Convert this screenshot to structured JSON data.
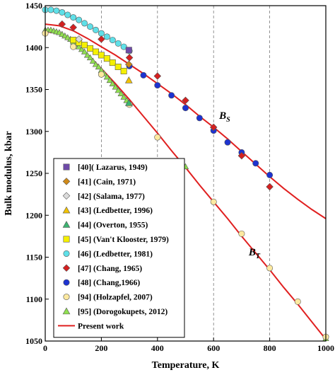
{
  "chart_data": {
    "type": "scatter",
    "xlabel": "Temperature,  K",
    "ylabel": "Bulk modulus, kbar",
    "xlim": [
      0,
      1000
    ],
    "ylim": [
      1050,
      1450
    ],
    "xticks": [
      0,
      200,
      400,
      600,
      800,
      1000
    ],
    "yticks": [
      1050,
      1100,
      1150,
      1200,
      1250,
      1300,
      1350,
      1400,
      1450
    ],
    "grid": "vertical dashed",
    "legend_position": "bottom-left",
    "annotations": [
      {
        "main": "B",
        "sub": "S",
        "x": 620,
        "y": 1315
      },
      {
        "main": "B",
        "sub": "T",
        "x": 725,
        "y": 1152
      }
    ],
    "series": [
      {
        "name": "[40]( Lazarus, 1949)",
        "marker": "square",
        "color": "#6e4aa8",
        "points": [
          [
            298,
            1397
          ]
        ]
      },
      {
        "name": "[41] (Cain, 1971)",
        "marker": "diamond",
        "color": "#d08a18",
        "points": [
          [
            298,
            1380
          ]
        ]
      },
      {
        "name": "[42] (Salama, 1977)",
        "marker": "diamond",
        "color": "#dcdcdc",
        "points": [
          [
            120,
            1410
          ]
        ]
      },
      {
        "name": "[43] (Ledbetter, 1996)",
        "marker": "triangle",
        "color": "#f2c200",
        "points": [
          [
            298,
            1361
          ]
        ]
      },
      {
        "name": "[44] (Overton, 1955)",
        "marker": "triangle",
        "color": "#3cb371",
        "points": [
          [
            298,
            1334
          ]
        ]
      },
      {
        "name": "[45] (Van't Klooster, 1979)",
        "marker": "square",
        "color": "#f5f000",
        "points": [
          [
            100,
            1409
          ],
          [
            120,
            1406
          ],
          [
            140,
            1403
          ],
          [
            160,
            1399
          ],
          [
            180,
            1395
          ],
          [
            200,
            1391
          ],
          [
            220,
            1387
          ],
          [
            240,
            1382
          ],
          [
            260,
            1377
          ],
          [
            280,
            1372
          ]
        ]
      },
      {
        "name": "[46] (Ledbetter, 1981)",
        "marker": "circle",
        "color": "#5fe0e8",
        "points": [
          [
            0,
            1445
          ],
          [
            20,
            1445
          ],
          [
            40,
            1444
          ],
          [
            60,
            1442
          ],
          [
            80,
            1439
          ],
          [
            100,
            1436
          ],
          [
            120,
            1433
          ],
          [
            140,
            1429
          ],
          [
            160,
            1425
          ],
          [
            180,
            1421
          ],
          [
            200,
            1417
          ],
          [
            220,
            1413
          ],
          [
            240,
            1409
          ],
          [
            260,
            1405
          ],
          [
            280,
            1401
          ],
          [
            300,
            1396
          ]
        ]
      },
      {
        "name": "[47] (Chang, 1965)",
        "marker": "diamond",
        "color": "#d42020",
        "points": [
          [
            60,
            1428
          ],
          [
            100,
            1424
          ],
          [
            200,
            1410
          ],
          [
            300,
            1388
          ],
          [
            400,
            1366
          ],
          [
            500,
            1337
          ],
          [
            600,
            1305
          ],
          [
            700,
            1271
          ],
          [
            800,
            1234
          ]
        ]
      },
      {
        "name": "[48] (Chang,1966)",
        "marker": "circle",
        "color": "#1e33d0",
        "points": [
          [
            300,
            1378
          ],
          [
            350,
            1367
          ],
          [
            400,
            1355
          ],
          [
            450,
            1343
          ],
          [
            500,
            1328
          ],
          [
            550,
            1316
          ],
          [
            600,
            1301
          ],
          [
            650,
            1287
          ],
          [
            700,
            1275
          ],
          [
            750,
            1262
          ],
          [
            800,
            1248
          ]
        ]
      },
      {
        "name": "[94] (Holzapfel, 2007)",
        "marker": "circle",
        "color": "#fde9a0",
        "points": [
          [
            0,
            1417
          ],
          [
            100,
            1401
          ],
          [
            200,
            1368
          ],
          [
            300,
            1332
          ],
          [
            400,
            1293
          ],
          [
            600,
            1216
          ],
          [
            700,
            1178
          ],
          [
            800,
            1137
          ],
          [
            900,
            1097
          ],
          [
            1000,
            1055
          ]
        ]
      },
      {
        "name": "[95] (Dorogokupets, 2012)",
        "marker": "triangle",
        "color": "#90e050",
        "points": [
          [
            0,
            1421
          ],
          [
            10,
            1421
          ],
          [
            20,
            1421
          ],
          [
            30,
            1420
          ],
          [
            40,
            1419
          ],
          [
            50,
            1418
          ],
          [
            60,
            1416
          ],
          [
            70,
            1414
          ],
          [
            80,
            1412
          ],
          [
            90,
            1410
          ],
          [
            100,
            1407
          ],
          [
            110,
            1404
          ],
          [
            120,
            1401
          ],
          [
            130,
            1398
          ],
          [
            140,
            1395
          ],
          [
            150,
            1391
          ],
          [
            160,
            1388
          ],
          [
            170,
            1384
          ],
          [
            180,
            1380
          ],
          [
            190,
            1377
          ],
          [
            200,
            1373
          ],
          [
            210,
            1369
          ],
          [
            220,
            1365
          ],
          [
            230,
            1361
          ],
          [
            240,
            1357
          ],
          [
            250,
            1353
          ],
          [
            260,
            1349
          ],
          [
            270,
            1345
          ],
          [
            280,
            1341
          ],
          [
            290,
            1337
          ],
          [
            300,
            1333
          ],
          [
            500,
            1258
          ],
          [
            1000,
            1053
          ]
        ]
      },
      {
        "name": "Present work",
        "marker": "line",
        "color": "#e02020",
        "curves": [
          [
            [
              0,
              1428
            ],
            [
              50,
              1426
            ],
            [
              100,
              1420
            ],
            [
              150,
              1411
            ],
            [
              200,
              1401
            ],
            [
              250,
              1391
            ],
            [
              300,
              1380
            ],
            [
              350,
              1369
            ],
            [
              400,
              1357
            ],
            [
              450,
              1345
            ],
            [
              500,
              1332
            ],
            [
              550,
              1318
            ],
            [
              600,
              1305
            ],
            [
              650,
              1291
            ],
            [
              700,
              1276
            ],
            [
              750,
              1261
            ],
            [
              800,
              1246
            ],
            [
              850,
              1232
            ],
            [
              900,
              1219
            ],
            [
              950,
              1207
            ],
            [
              1000,
              1196
            ]
          ],
          [
            [
              0,
              1419
            ],
            [
              50,
              1417
            ],
            [
              100,
              1407
            ],
            [
              150,
              1392
            ],
            [
              200,
              1375
            ],
            [
              250,
              1357
            ],
            [
              300,
              1338
            ],
            [
              350,
              1318
            ],
            [
              400,
              1298
            ],
            [
              450,
              1277
            ],
            [
              500,
              1257
            ],
            [
              550,
              1236
            ],
            [
              600,
              1216
            ],
            [
              650,
              1196
            ],
            [
              700,
              1175
            ],
            [
              750,
              1155
            ],
            [
              800,
              1135
            ],
            [
              850,
              1114
            ],
            [
              900,
              1094
            ],
            [
              950,
              1073
            ],
            [
              1000,
              1052
            ]
          ]
        ]
      }
    ]
  }
}
